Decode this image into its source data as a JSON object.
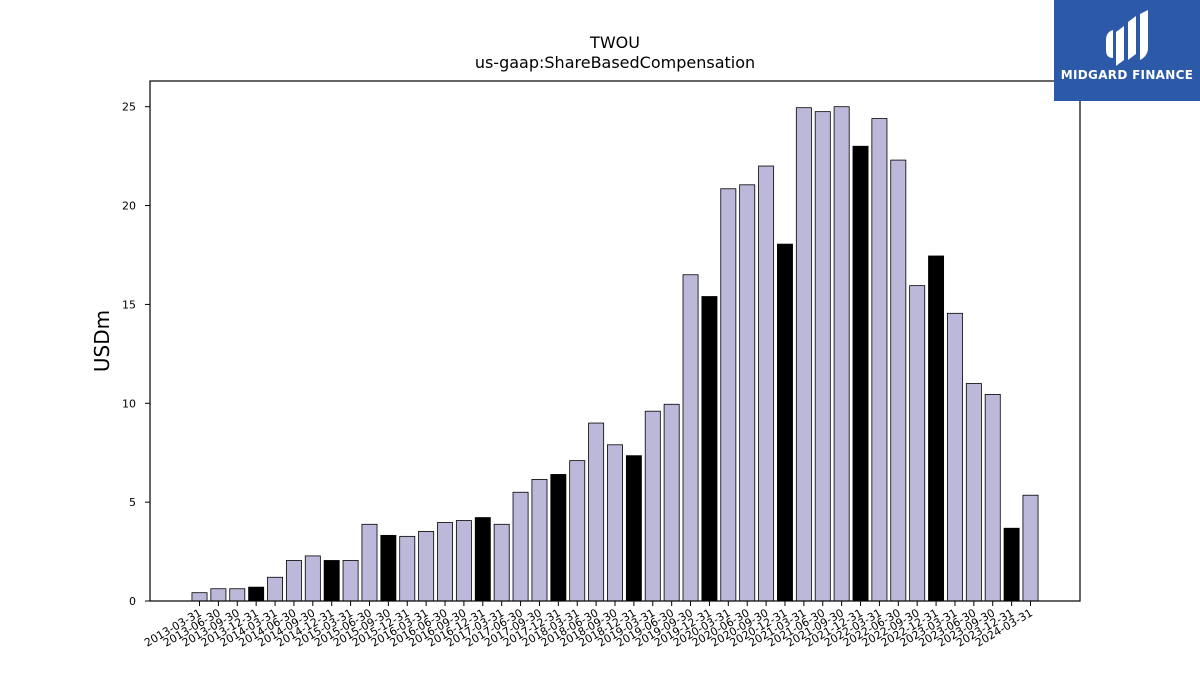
{
  "brand": {
    "name": "MIDGARD FINANCE",
    "bg_color": "#2c5aa8",
    "icon": "midgard-logo-icon"
  },
  "chart_data": {
    "type": "bar",
    "title": "TWOU",
    "subtitle": "us-gaap:ShareBasedCompensation",
    "xlabel": "",
    "ylabel": "USDm",
    "ylim": [
      0,
      26.3
    ],
    "yticks": [
      0,
      5,
      10,
      15,
      20,
      25
    ],
    "grid": false,
    "colors": {
      "quarter": "#bcb8da",
      "fiscal_year_end": "#000000",
      "edge": "#000000"
    },
    "categories": [
      "2013-03-31",
      "2013-06-30",
      "2013-09-30",
      "2013-12-31",
      "2014-03-31",
      "2014-06-30",
      "2014-09-30",
      "2014-12-31",
      "2015-03-31",
      "2015-06-30",
      "2015-09-30",
      "2015-12-31",
      "2016-03-31",
      "2016-06-30",
      "2016-09-30",
      "2016-12-31",
      "2017-03-31",
      "2017-06-30",
      "2017-09-30",
      "2017-12-31",
      "2018-03-31",
      "2018-06-30",
      "2018-09-30",
      "2018-12-31",
      "2019-03-31",
      "2019-06-30",
      "2019-09-30",
      "2019-12-31",
      "2020-03-31",
      "2020-06-30",
      "2020-09-30",
      "2020-12-31",
      "2021-03-31",
      "2021-06-30",
      "2021-09-30",
      "2021-12-31",
      "2022-03-31",
      "2022-06-30",
      "2022-09-30",
      "2022-12-31",
      "2023-03-31",
      "2023-06-30",
      "2023-09-30",
      "2023-12-31",
      "2024-03-31"
    ],
    "values": [
      0.42,
      0.62,
      0.62,
      0.7,
      1.2,
      2.05,
      2.28,
      2.05,
      2.05,
      3.88,
      3.32,
      3.27,
      3.52,
      3.97,
      4.07,
      4.22,
      3.88,
      5.5,
      6.15,
      6.4,
      7.1,
      9.0,
      7.9,
      7.35,
      9.6,
      9.95,
      16.5,
      15.4,
      20.85,
      21.05,
      22.0,
      18.05,
      24.95,
      24.75,
      25.0,
      23.0,
      24.4,
      22.3,
      15.95,
      17.45,
      14.55,
      11.0,
      10.45,
      3.68,
      5.35
    ],
    "fiscal_year_end": [
      false,
      false,
      false,
      true,
      false,
      false,
      false,
      true,
      false,
      false,
      true,
      false,
      false,
      false,
      false,
      true,
      false,
      false,
      false,
      true,
      false,
      false,
      false,
      true,
      false,
      false,
      false,
      true,
      false,
      false,
      false,
      true,
      false,
      false,
      false,
      true,
      false,
      false,
      false,
      true,
      false,
      false,
      false,
      true,
      false
    ]
  }
}
